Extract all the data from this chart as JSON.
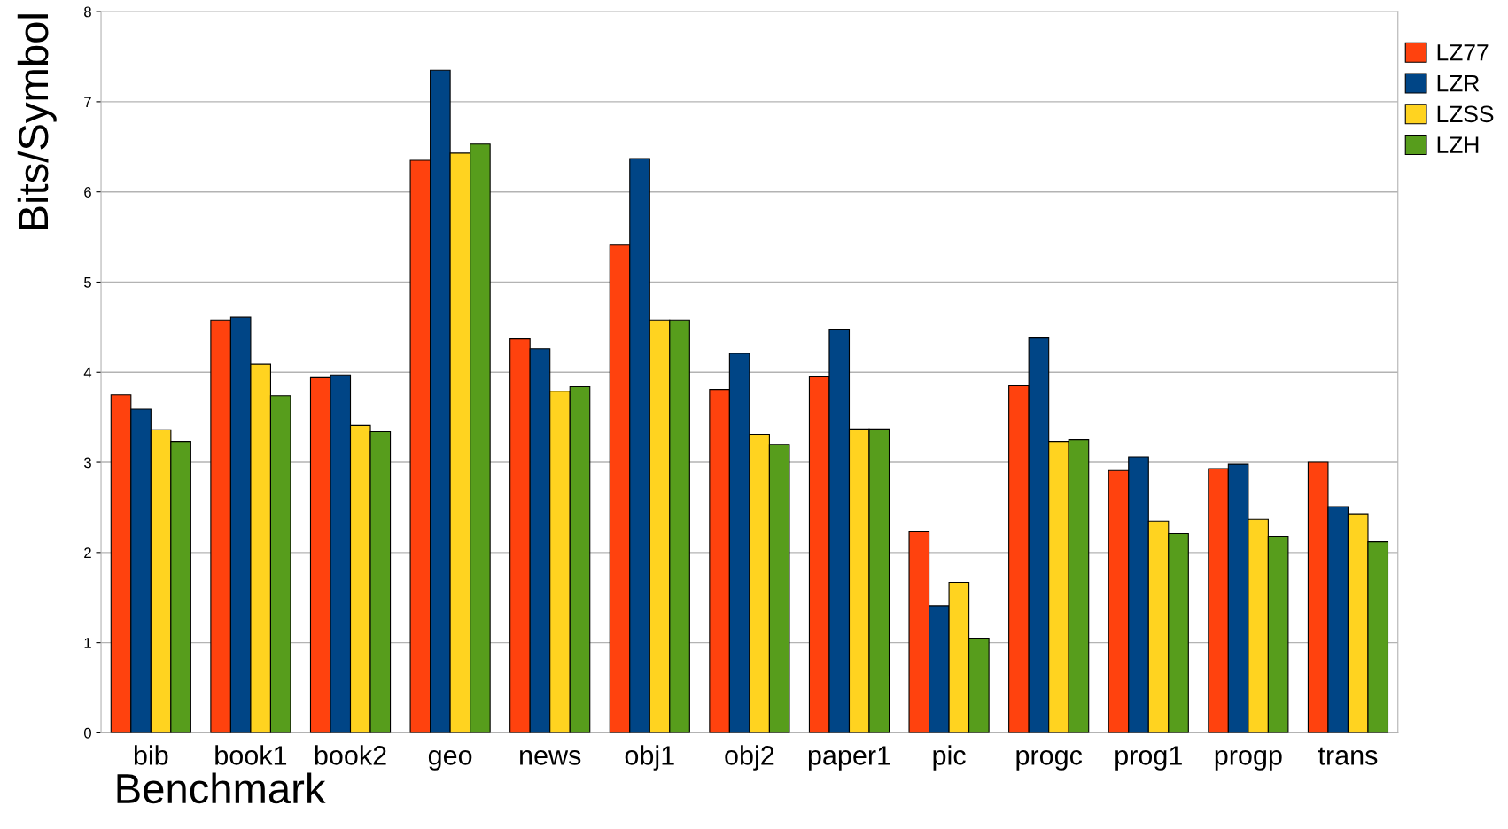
{
  "chart_data": {
    "type": "bar",
    "xlabel": "Benchmark",
    "ylabel": "Bits/Symbol",
    "categories": [
      "bib",
      "book1",
      "book2",
      "geo",
      "news",
      "obj1",
      "obj2",
      "paper1",
      "pic",
      "progc",
      "prog1",
      "progp",
      "trans"
    ],
    "series": [
      {
        "name": "LZ77",
        "color": "#ff420e",
        "values": [
          3.75,
          4.58,
          3.94,
          6.35,
          4.37,
          5.41,
          3.81,
          3.95,
          2.23,
          3.85,
          2.91,
          2.93,
          3.0
        ]
      },
      {
        "name": "LZR",
        "color": "#004586",
        "values": [
          3.59,
          4.61,
          3.97,
          7.35,
          4.26,
          6.37,
          4.21,
          4.47,
          1.41,
          4.38,
          3.06,
          2.98,
          2.51
        ]
      },
      {
        "name": "LZSS",
        "color": "#ffd320",
        "values": [
          3.36,
          4.09,
          3.41,
          6.43,
          3.79,
          4.58,
          3.31,
          3.37,
          1.67,
          3.23,
          2.35,
          2.37,
          2.43
        ]
      },
      {
        "name": "LZH",
        "color": "#579d1c",
        "values": [
          3.23,
          3.74,
          3.34,
          6.53,
          3.84,
          4.58,
          3.2,
          3.37,
          1.05,
          3.25,
          2.21,
          2.18,
          2.12
        ]
      }
    ],
    "ylim": [
      0,
      8
    ],
    "yticks": [
      0,
      1,
      2,
      3,
      4,
      5,
      6,
      7,
      8
    ],
    "grid": "y",
    "legend": "right"
  }
}
